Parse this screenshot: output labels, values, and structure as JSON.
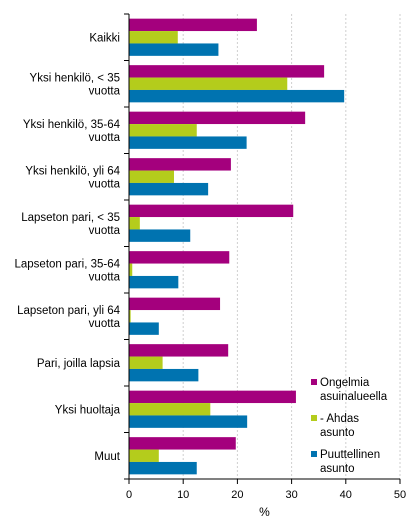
{
  "chart_data": {
    "type": "bar",
    "orientation": "horizontal",
    "categories": [
      [
        "Kaikki"
      ],
      [
        "Yksi henkilö, < 35",
        "vuotta"
      ],
      [
        "Yksi henkilö, 35-64",
        "vuotta"
      ],
      [
        "Yksi henkilö, yli 64",
        "vuotta"
      ],
      [
        "Lapseton pari, < 35",
        "vuotta"
      ],
      [
        "Lapseton pari, 35-64",
        "vuotta"
      ],
      [
        "Lapseton pari,  yli 64",
        "vuotta"
      ],
      [
        "Pari, joilla lapsia"
      ],
      [
        "Yksi huoltaja"
      ],
      [
        "Muut"
      ]
    ],
    "series": [
      {
        "name": [
          "Ongelmia",
          "asuinalueella"
        ],
        "color": "#a4007d",
        "values": [
          23.6,
          36.0,
          32.5,
          18.8,
          30.3,
          18.5,
          16.8,
          18.3,
          30.8,
          19.7
        ]
      },
      {
        "name": [
          "- Ahdas",
          "asunto"
        ],
        "color": "#b4cc1c",
        "values": [
          9.0,
          29.2,
          12.5,
          8.3,
          2.0,
          0.6,
          0.3,
          6.2,
          15.0,
          5.5
        ]
      },
      {
        "name": [
          "Puuttellinen",
          "asunto"
        ],
        "color": "#0073b0",
        "values": [
          16.5,
          39.7,
          21.7,
          14.6,
          11.3,
          9.1,
          5.5,
          12.8,
          21.8,
          12.5
        ]
      }
    ],
    "xlim": [
      0,
      50
    ],
    "xticks": [
      0,
      10,
      20,
      30,
      40,
      50
    ],
    "xlabel": "%",
    "grid": "vertical",
    "legend_position": "bottom-right"
  }
}
